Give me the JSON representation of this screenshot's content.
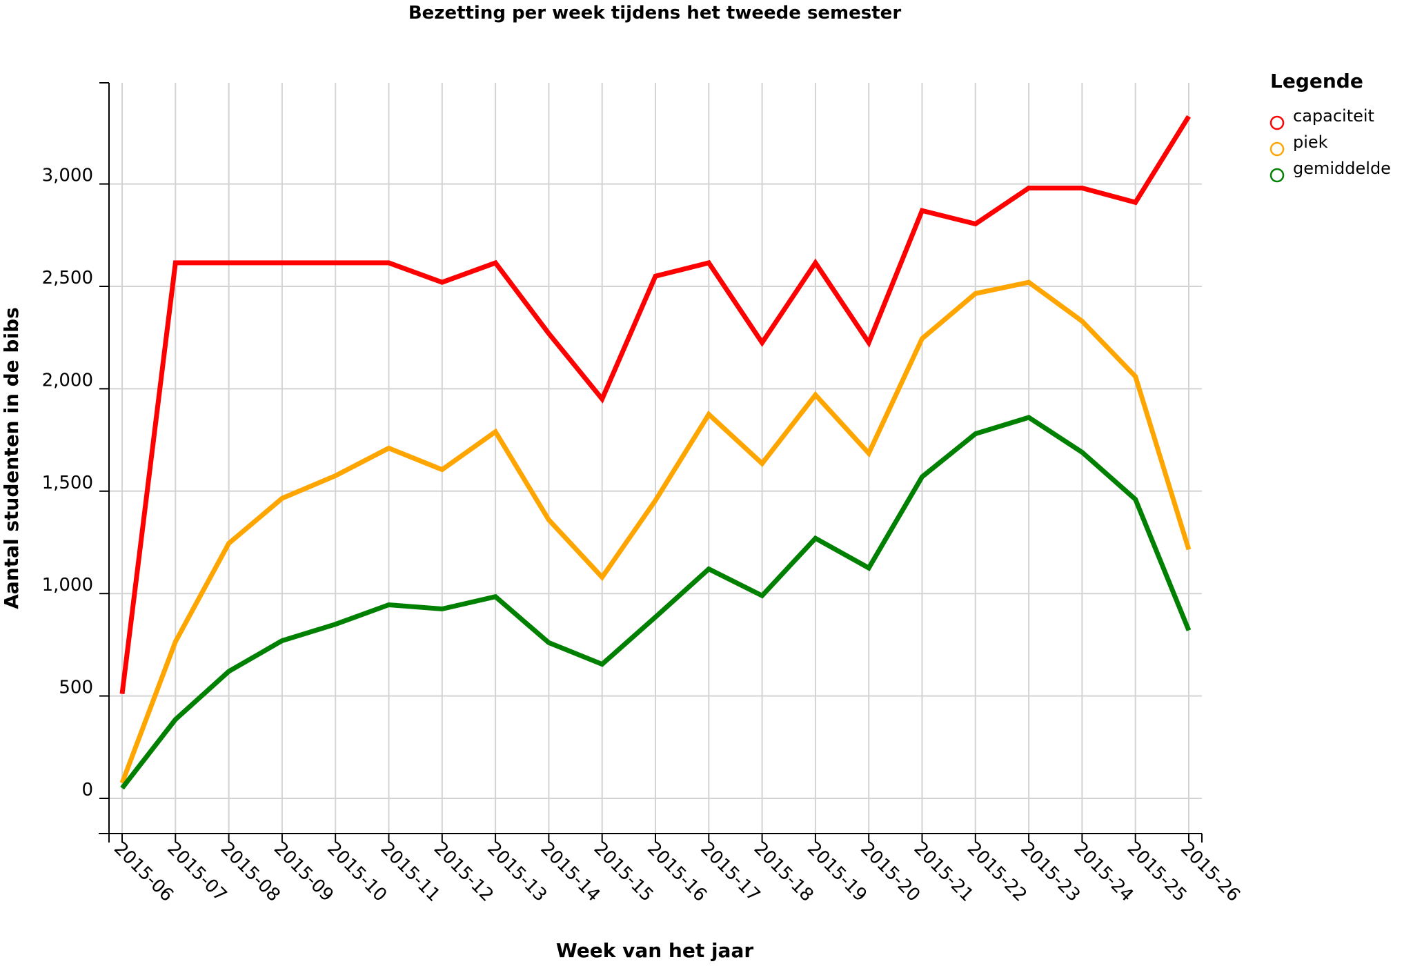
{
  "chart_data": {
    "type": "line",
    "title": "Bezetting per week tijdens het tweede semester",
    "xlabel": "Week van het jaar",
    "ylabel": "Aantal studenten in de bibs",
    "categories": [
      "2015-06",
      "2015-07",
      "2015-08",
      "2015-09",
      "2015-10",
      "2015-11",
      "2015-12",
      "2015-13",
      "2015-14",
      "2015-15",
      "2015-16",
      "2015-17",
      "2015-18",
      "2015-19",
      "2015-20",
      "2015-21",
      "2015-22",
      "2015-23",
      "2015-24",
      "2015-25",
      "2015-26"
    ],
    "y_ticks": [
      0,
      500,
      1000,
      1500,
      2000,
      2500,
      3000
    ],
    "y_tick_labels": [
      "0",
      "500",
      "1,000",
      "1,500",
      "2,000",
      "2,500",
      "3,000"
    ],
    "ylim": [
      -165,
      3500
    ],
    "grid": true,
    "legend_placement": "right",
    "legend_title": "Legende",
    "series": [
      {
        "name": "capaciteit",
        "color": "#ff0000",
        "values": [
          510,
          2615,
          2615,
          2615,
          2615,
          2615,
          2520,
          2615,
          2270,
          1950,
          2550,
          2615,
          2225,
          2615,
          2225,
          2870,
          2805,
          2980,
          2980,
          2910,
          3330
        ]
      },
      {
        "name": "piek",
        "color": "#ffa500",
        "values": [
          75,
          765,
          1245,
          1465,
          1575,
          1710,
          1605,
          1790,
          1360,
          1080,
          1455,
          1875,
          1635,
          1970,
          1685,
          2245,
          2465,
          2520,
          2330,
          2060,
          1215
        ]
      },
      {
        "name": "gemiddelde",
        "color": "#008000",
        "values": [
          50,
          385,
          620,
          770,
          850,
          945,
          925,
          985,
          760,
          655,
          885,
          1120,
          990,
          1270,
          1125,
          1570,
          1780,
          1860,
          1690,
          1460,
          820
        ]
      }
    ]
  }
}
